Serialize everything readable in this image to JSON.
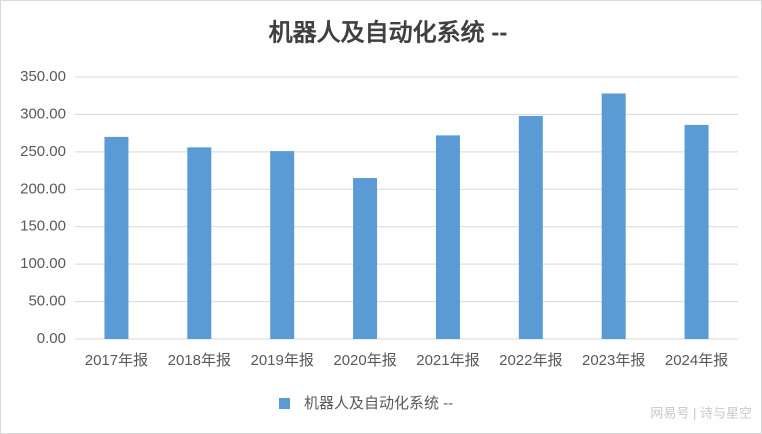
{
  "chart_data": {
    "type": "bar",
    "title": "机器人及自动化系统 --",
    "categories": [
      "2017年报",
      "2018年报",
      "2019年报",
      "2020年报",
      "2021年报",
      "2022年报",
      "2023年报",
      "2024年报"
    ],
    "series": [
      {
        "name": "机器人及自动化系统 --",
        "color": "#5b9bd5",
        "values": [
          270,
          256,
          251,
          215,
          272,
          298,
          328,
          286
        ]
      }
    ],
    "ylim": [
      0,
      350
    ],
    "yticks": [
      {
        "value": 0,
        "label": "0.00"
      },
      {
        "value": 50,
        "label": "50.00"
      },
      {
        "value": 100,
        "label": "100.00"
      },
      {
        "value": 150,
        "label": "150.00"
      },
      {
        "value": 200,
        "label": "200.00"
      },
      {
        "value": 250,
        "label": "250.00"
      },
      {
        "value": 300,
        "label": "300.00"
      },
      {
        "value": 350,
        "label": "350.00"
      }
    ],
    "grid": true,
    "legend": "bottom",
    "watermark": "网易号 | 诗与星空"
  }
}
